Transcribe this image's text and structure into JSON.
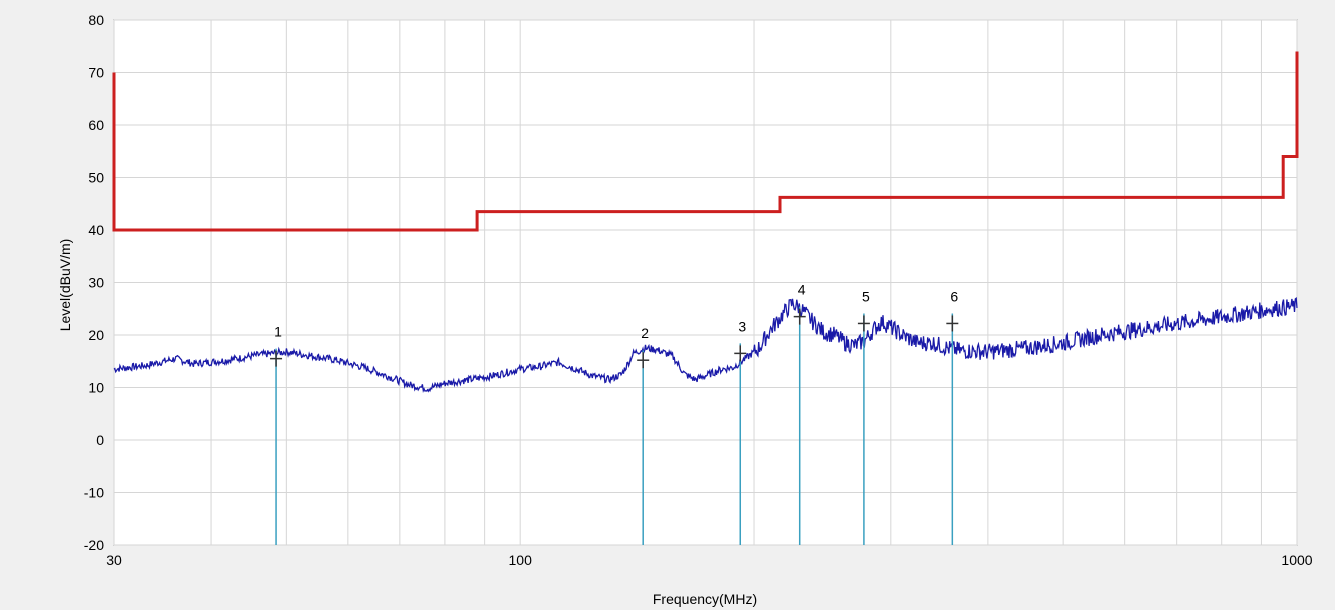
{
  "chart_data": {
    "type": "line",
    "xlabel": "Frequency(MHz)",
    "ylabel": "Level(dBuV/m)",
    "x_scale": "log",
    "xlim": [
      30,
      1000
    ],
    "ylim": [
      -20,
      80
    ],
    "grid": true,
    "x_tick_labels": [
      {
        "value": 30,
        "label": "30"
      },
      {
        "value": 100,
        "label": "100"
      },
      {
        "value": 1000,
        "label": "1000"
      }
    ],
    "x_minor_grid": [
      40,
      50,
      60,
      70,
      80,
      90,
      200,
      300,
      400,
      500,
      600,
      700,
      800,
      900
    ],
    "y_tick_labels": [
      {
        "value": 80,
        "label": "80"
      },
      {
        "value": 70,
        "label": "70"
      },
      {
        "value": 60,
        "label": "60"
      },
      {
        "value": 50,
        "label": "50"
      },
      {
        "value": 40,
        "label": "40"
      },
      {
        "value": 30,
        "label": "30"
      },
      {
        "value": 20,
        "label": "20"
      },
      {
        "value": 10,
        "label": "10"
      },
      {
        "value": 0,
        "label": "0"
      },
      {
        "value": -10,
        "label": "-10"
      },
      {
        "value": -20,
        "label": "-20"
      }
    ],
    "series": [
      {
        "color": "#cc1f1f",
        "style": "step",
        "points": [
          [
            30,
            70
          ],
          [
            30,
            40
          ],
          [
            88,
            40
          ],
          [
            88,
            43.5
          ],
          [
            216,
            43.5
          ],
          [
            216,
            46.2
          ],
          [
            960,
            46.2
          ],
          [
            960,
            54
          ],
          [
            1000,
            54
          ],
          [
            1000,
            74
          ]
        ]
      },
      {
        "color": "#1a1aa8",
        "style": "noisy-line",
        "points": [
          [
            30,
            13.5
          ],
          [
            33,
            14.2
          ],
          [
            36,
            15.5
          ],
          [
            38,
            14.5
          ],
          [
            42,
            15.2
          ],
          [
            46,
            16.2
          ],
          [
            50,
            16.8
          ],
          [
            54,
            16.0
          ],
          [
            58,
            15.2
          ],
          [
            63,
            13.8
          ],
          [
            68,
            12.0
          ],
          [
            72,
            10.5
          ],
          [
            76,
            9.8
          ],
          [
            80,
            10.8
          ],
          [
            86,
            11.5
          ],
          [
            92,
            12.2
          ],
          [
            100,
            13.5
          ],
          [
            106,
            14.0
          ],
          [
            112,
            14.8
          ],
          [
            118,
            13.5
          ],
          [
            124,
            12.2
          ],
          [
            130,
            11.5
          ],
          [
            135,
            12.5
          ],
          [
            140,
            16.5
          ],
          [
            145,
            17.5
          ],
          [
            150,
            17.2
          ],
          [
            157,
            16.0
          ],
          [
            163,
            12.5
          ],
          [
            168,
            11.5
          ],
          [
            175,
            12.5
          ],
          [
            182,
            13.5
          ],
          [
            188,
            13.8
          ],
          [
            195,
            15.5
          ],
          [
            203,
            17.5
          ],
          [
            210,
            21.0
          ],
          [
            218,
            24.0
          ],
          [
            224,
            26.0
          ],
          [
            230,
            25.0
          ],
          [
            238,
            22.5
          ],
          [
            246,
            20.5
          ],
          [
            254,
            20.0
          ],
          [
            262,
            18.5
          ],
          [
            270,
            18.0
          ],
          [
            278,
            19.0
          ],
          [
            285,
            21.0
          ],
          [
            292,
            22.5
          ],
          [
            300,
            21.5
          ],
          [
            310,
            20.0
          ],
          [
            325,
            18.5
          ],
          [
            340,
            18.5
          ],
          [
            355,
            17.5
          ],
          [
            370,
            17.0
          ],
          [
            400,
            16.8
          ],
          [
            450,
            17.5
          ],
          [
            500,
            18.5
          ],
          [
            560,
            20.0
          ],
          [
            620,
            21.0
          ],
          [
            700,
            22.2
          ],
          [
            780,
            23.2
          ],
          [
            860,
            24.2
          ],
          [
            930,
            25.0
          ],
          [
            1000,
            25.5
          ]
        ]
      }
    ],
    "markers": [
      {
        "label": "1",
        "x": 48.5,
        "y": 15.5
      },
      {
        "label": "2",
        "x": 144,
        "y": 15.2
      },
      {
        "label": "3",
        "x": 192,
        "y": 16.5
      },
      {
        "label": "4",
        "x": 229,
        "y": 23.5
      },
      {
        "label": "5",
        "x": 277,
        "y": 22.2
      },
      {
        "label": "6",
        "x": 360,
        "y": 22.2
      }
    ],
    "marker_color": "#3aa0c0"
  }
}
